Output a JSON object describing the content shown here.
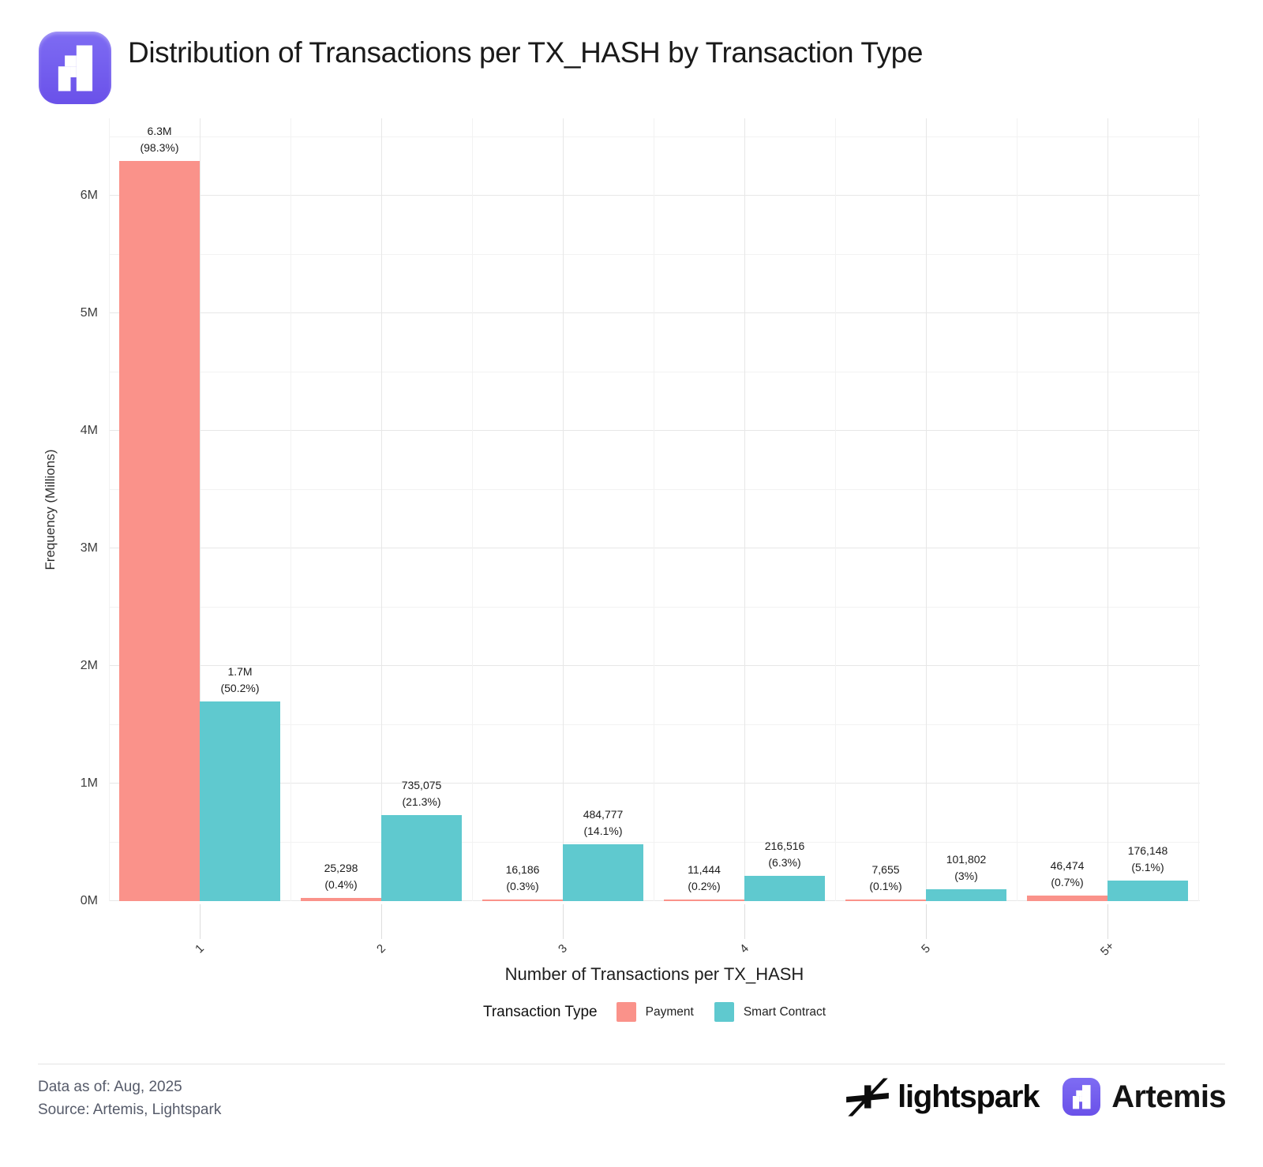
{
  "header": {
    "title": "Distribution of Transactions per TX_HASH by Transaction Type"
  },
  "chart_data": {
    "type": "bar",
    "title": "Distribution of Transactions per TX_HASH by Transaction Type",
    "xlabel": "Number of Transactions per TX_HASH",
    "ylabel": "Frequency (Millions)",
    "categories": [
      "1",
      "2",
      "3",
      "4",
      "5",
      "5+"
    ],
    "series": [
      {
        "name": "Payment",
        "color": "#FA928A",
        "values": [
          6300000,
          25298,
          16186,
          11444,
          7655,
          46474
        ],
        "value_labels": [
          "6.3M",
          "25,298",
          "16,186",
          "11,444",
          "7,655",
          "46,474"
        ],
        "pct_labels": [
          "(98.3%)",
          "(0.4%)",
          "(0.3%)",
          "(0.2%)",
          "(0.1%)",
          "(0.7%)"
        ]
      },
      {
        "name": "Smart Contract",
        "color": "#5FC9CF",
        "values": [
          1700000,
          735075,
          484777,
          216516,
          101802,
          176148
        ],
        "value_labels": [
          "1.7M",
          "735,075",
          "484,777",
          "216,516",
          "101,802",
          "176,148"
        ],
        "pct_labels": [
          "(50.2%)",
          "(21.3%)",
          "(14.1%)",
          "(6.3%)",
          "(3%)",
          "(5.1%)"
        ]
      }
    ],
    "y_ticks": [
      "0M",
      "1M",
      "2M",
      "3M",
      "4M",
      "5M",
      "6M"
    ],
    "ylim": [
      0,
      6660000
    ],
    "grid": true,
    "legend": {
      "title": "Transaction Type",
      "position": "bottom"
    }
  },
  "footer": {
    "data_as_of": "Data as of: Aug, 2025",
    "source": "Source: Artemis, Lightspark",
    "lightspark_wordmark": "lightspark",
    "artemis_wordmark": "Artemis"
  }
}
